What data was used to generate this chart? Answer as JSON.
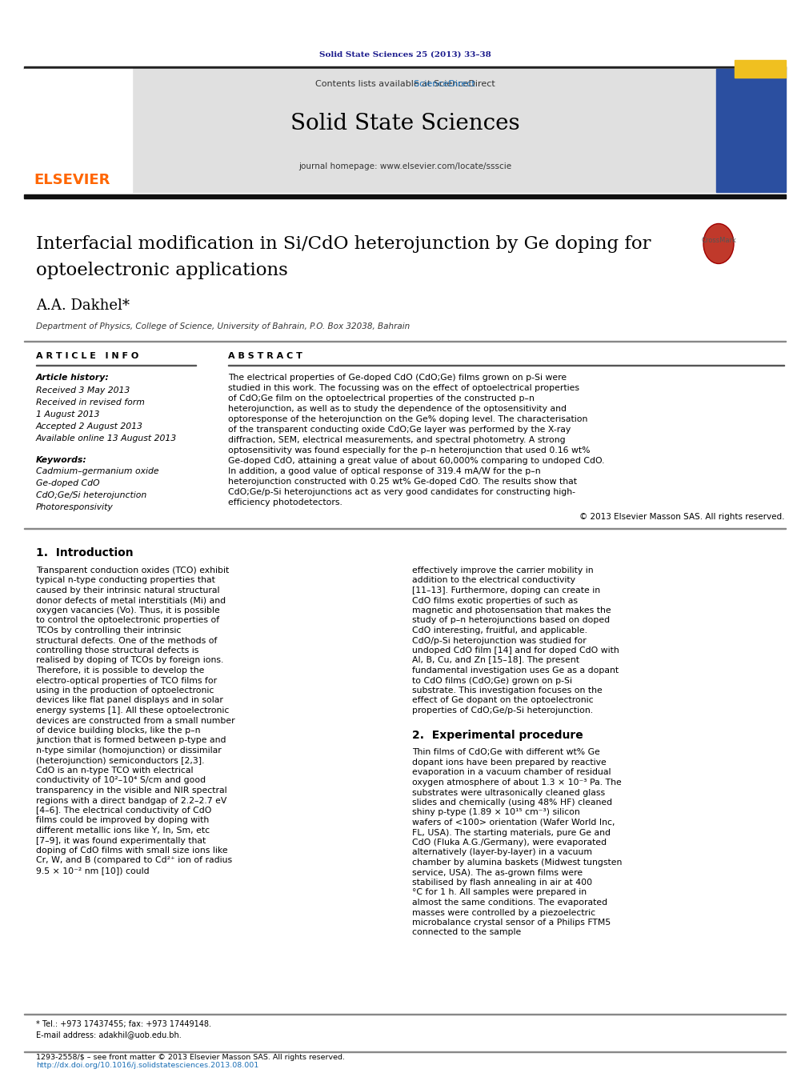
{
  "journal_ref": "Solid State Sciences 25 (2013) 33–38",
  "journal_ref_color": "#1a1a8c",
  "header_bg": "#e8e8e8",
  "journal_name": "Solid State Sciences",
  "contents_text": "Contents lists available at ",
  "sciencedirect_text": "ScienceDirect",
  "sciencedirect_color": "#1a6eb5",
  "homepage_text": "journal homepage: www.elsevier.com/locate/ssscie",
  "elsevier_color": "#ff6600",
  "title": "Interfacial modification in Si/CdO heterojunction by Ge doping for\noptoelectronic applications",
  "author": "A.A. Dakhel*",
  "affiliation": "Department of Physics, College of Science, University of Bahrain, P.O. Box 32038, Bahrain",
  "article_info_header": "A R T I C L E   I N F O",
  "abstract_header": "A B S T R A C T",
  "article_history_label": "Article history:",
  "dates": [
    "Received 3 May 2013",
    "Received in revised form",
    "1 August 2013",
    "Accepted 2 August 2013",
    "Available online 13 August 2013"
  ],
  "keywords_label": "Keywords:",
  "keywords": [
    "Cadmium–germanium oxide",
    "Ge-doped CdO",
    "CdO;Ge/Si heterojunction",
    "Photoresponsivity"
  ],
  "abstract_text": "The electrical properties of Ge-doped CdO (CdO;Ge) films grown on p-Si were studied in this work. The focussing was on the effect of optoelectrical properties of CdO;Ge film on the optoelectrical properties of the constructed p–n heterojunction, as well as to study the dependence of the optosensitivity and optoresponse of the heterojunction on the Ge% doping level. The characterisation of the transparent conducting oxide CdO;Ge layer was performed by the X-ray diffraction, SEM, electrical measurements, and spectral photometry. A strong optosensitivity was found especially for the p–n heterojunction that used 0.16 wt% Ge-doped CdO, attaining a great value of about 60,000% comparing to undoped CdO. In addition, a good value of optical response of 319.4 mA/W for the p–n heterojunction constructed with 0.25 wt% Ge-doped CdO. The results show that CdO;Ge/p-Si heterojunctions act as very good candidates for constructing high-efficiency photodetectors.",
  "copyright_text": "© 2013 Elsevier Masson SAS. All rights reserved.",
  "section1_title": "1.  Introduction",
  "section1_col1": "Transparent conduction oxides (TCO) exhibit typical n-type conducting properties that caused by their intrinsic natural structural donor defects of metal interstitials (Mi) and oxygen vacancies (Vo). Thus, it is possible to control the optoelectronic properties of TCOs by controlling their intrinsic structural defects. One of the methods of controlling those structural defects is realised by doping of TCOs by foreign ions. Therefore, it is possible to develop the electro-optical properties of TCO films for using in the production of optoelectronic devices like flat panel displays and in solar energy systems [1]. All these optoelectronic devices are constructed from a small number of device building blocks, like the p–n junction that is formed between p-type and n-type similar (homojunction) or dissimilar (heterojunction) semiconductors [2,3].\n    CdO is an n-type TCO with electrical conductivity of 10²–10⁴ S/cm and good transparency in the visible and NIR spectral regions with a direct bandgap of 2.2–2.7 eV [4–6]. The electrical conductivity of CdO films could be improved by doping with different metallic ions like Y, In, Sm, etc [7–9], it was found experimentally that doping of CdO films with small size ions like Cr, W, and B (compared to Cd²⁺ ion of radius 9.5 × 10⁻² nm [10]) could",
  "section1_col2": "effectively improve the carrier mobility in addition to the electrical conductivity [11–13]. Furthermore, doping can create in CdO films exotic properties of such as magnetic and photosensation that makes the study of p–n heterojunctions based on doped CdO interesting, fruitful, and applicable.\n    CdO/p-Si heterojunction was studied for undoped CdO film [14] and for doped CdO with Al, B, Cu, and Zn [15–18]. The present fundamental investigation uses Ge as a dopant to CdO films (CdO;Ge) grown on p-Si substrate. This investigation focuses on the effect of Ge dopant on the optoelectronic properties of CdO;Ge/p-Si heterojunction.",
  "section2_title": "2.  Experimental procedure",
  "section2_col2": "Thin films of CdO;Ge with different wt% Ge dopant ions have been prepared by reactive evaporation in a vacuum chamber of residual oxygen atmosphere of about 1.3 × 10⁻³ Pa. The substrates were ultrasonically cleaned glass slides and chemically (using 48% HF) cleaned shiny p-type (1.89 × 10¹⁵ cm⁻³) silicon wafers of <100> orientation (Wafer World Inc, FL, USA). The starting materials, pure Ge and CdO (Fluka A.G./Germany), were evaporated alternatively (layer-by-layer) in a vacuum chamber by alumina baskets (Midwest tungsten service, USA). The as-grown films were stabilised by flash annealing in air at 400 °C for 1 h. All samples were prepared in almost the same conditions. The evaporated masses were controlled by a piezoelectric microbalance crystal sensor of a Philips FTM5 connected to the sample",
  "footnote_tel": "* Tel.: +973 17437455; fax: +973 17449148.",
  "footnote_email": "E-mail address: adakhil@uob.edu.bh.",
  "footer_issn": "1293-2558/$ – see front matter © 2013 Elsevier Masson SAS. All rights reserved.",
  "footer_doi": "http://dx.doi.org/10.1016/j.solidstatesciences.2013.08.001",
  "bg_color": "#ffffff",
  "text_color": "#000000",
  "header_line_color": "#222222"
}
